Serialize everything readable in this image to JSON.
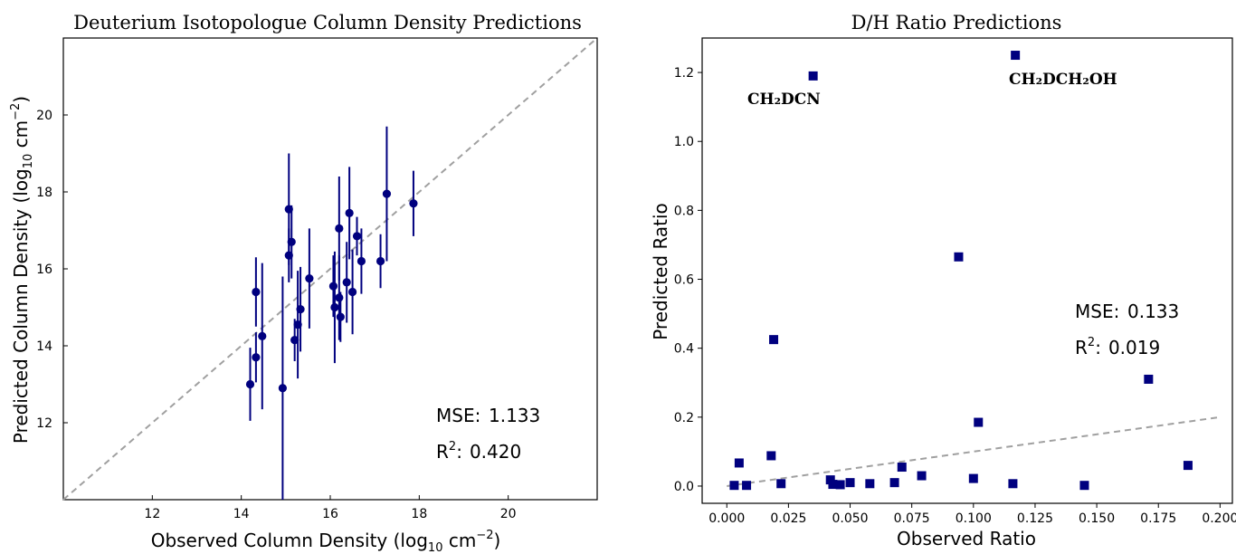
{
  "chart_data": [
    {
      "type": "scatter",
      "title": "Deuterium Isotopologue Column Density Predictions",
      "xlabel": "Observed Column Density (log10 cm^-2)",
      "ylabel": "Predicted Column Density (log10 cm^-2)",
      "xlabel_parts": [
        "Observed Column Density (log",
        "10",
        " cm",
        "−2",
        ")"
      ],
      "ylabel_parts": [
        "Predicted Column Density (log",
        "10",
        " cm",
        "−2",
        ")"
      ],
      "xlim": [
        10.0,
        22.0
      ],
      "ylim": [
        10.0,
        22.0
      ],
      "xticks": [
        12,
        14,
        16,
        18,
        20
      ],
      "yticks": [
        12,
        14,
        16,
        18,
        20
      ],
      "reference_line": "y = x (gray dashed)",
      "marker_color": "#00007f",
      "stats": {
        "mse_label": "MSE:",
        "mse": "1.133",
        "r2_label": "R",
        "r2_sup": "2",
        "r2_colon": ":",
        "r2": "0.420"
      },
      "points": [
        {
          "x": 14.2,
          "y": 13.0,
          "yerr": 0.95
        },
        {
          "x": 14.33,
          "y": 13.7,
          "yerr": 0.65
        },
        {
          "x": 14.33,
          "y": 15.4,
          "yerr": 0.9
        },
        {
          "x": 14.47,
          "y": 14.25,
          "yerr": 1.9
        },
        {
          "x": 14.93,
          "y": 12.9,
          "yerr": 2.9
        },
        {
          "x": 15.07,
          "y": 17.55,
          "yerr": 1.45
        },
        {
          "x": 15.07,
          "y": 16.35,
          "yerr": 0.7
        },
        {
          "x": 15.13,
          "y": 16.7,
          "yerr": 0.95
        },
        {
          "x": 15.2,
          "y": 14.15,
          "yerr": 0.55
        },
        {
          "x": 15.27,
          "y": 14.55,
          "yerr": 1.4
        },
        {
          "x": 15.33,
          "y": 14.95,
          "yerr": 1.1
        },
        {
          "x": 15.53,
          "y": 15.75,
          "yerr": 1.3
        },
        {
          "x": 16.07,
          "y": 15.55,
          "yerr": 0.8
        },
        {
          "x": 16.1,
          "y": 15.0,
          "yerr": 1.45
        },
        {
          "x": 16.2,
          "y": 15.25,
          "yerr": 1.1
        },
        {
          "x": 16.2,
          "y": 17.05,
          "yerr": 1.35
        },
        {
          "x": 16.23,
          "y": 14.75,
          "yerr": 0.65
        },
        {
          "x": 16.37,
          "y": 15.65,
          "yerr": 1.05
        },
        {
          "x": 16.43,
          "y": 17.45,
          "yerr": 1.2
        },
        {
          "x": 16.5,
          "y": 15.4,
          "yerr": 1.1
        },
        {
          "x": 16.6,
          "y": 16.85,
          "yerr": 0.5
        },
        {
          "x": 16.7,
          "y": 16.2,
          "yerr": 0.85
        },
        {
          "x": 17.13,
          "y": 16.2,
          "yerr": 0.7
        },
        {
          "x": 17.27,
          "y": 17.95,
          "yerr": 1.75
        },
        {
          "x": 17.87,
          "y": 17.7,
          "yerr": 0.85
        }
      ]
    },
    {
      "type": "scatter",
      "title": "D/H Ratio Predictions",
      "xlabel": "Observed Ratio",
      "ylabel": "Predicted Ratio",
      "xlim": [
        -0.01,
        0.205
      ],
      "ylim": [
        -0.05,
        1.3
      ],
      "xticks": [
        "0.000",
        "0.025",
        "0.050",
        "0.075",
        "0.100",
        "0.125",
        "0.150",
        "0.175",
        "0.200"
      ],
      "yticks": [
        "0.0",
        "0.2",
        "0.4",
        "0.6",
        "0.8",
        "1.0",
        "1.2"
      ],
      "reference_line": "y = x (gray dashed)",
      "marker_color": "#00007f",
      "stats": {
        "mse_label": "MSE:",
        "mse": "0.133",
        "r2_label": "R",
        "r2_sup": "2",
        "r2_colon": ":",
        "r2": "0.019"
      },
      "annotations": [
        {
          "text": "CH₂DCN",
          "x": 0.035,
          "y": 1.19
        },
        {
          "text": "CH₂DCH₂OH",
          "x": 0.117,
          "y": 1.25
        }
      ],
      "points": [
        {
          "x": 0.035,
          "y": 1.19
        },
        {
          "x": 0.117,
          "y": 1.25
        },
        {
          "x": 0.094,
          "y": 0.665
        },
        {
          "x": 0.019,
          "y": 0.425
        },
        {
          "x": 0.171,
          "y": 0.31
        },
        {
          "x": 0.102,
          "y": 0.185
        },
        {
          "x": 0.018,
          "y": 0.088
        },
        {
          "x": 0.005,
          "y": 0.067
        },
        {
          "x": 0.187,
          "y": 0.06
        },
        {
          "x": 0.071,
          "y": 0.055
        },
        {
          "x": 0.079,
          "y": 0.03
        },
        {
          "x": 0.1,
          "y": 0.022
        },
        {
          "x": 0.042,
          "y": 0.018
        },
        {
          "x": 0.05,
          "y": 0.01
        },
        {
          "x": 0.068,
          "y": 0.01
        },
        {
          "x": 0.022,
          "y": 0.007
        },
        {
          "x": 0.058,
          "y": 0.007
        },
        {
          "x": 0.116,
          "y": 0.007
        },
        {
          "x": 0.043,
          "y": 0.005
        },
        {
          "x": 0.046,
          "y": 0.004
        },
        {
          "x": 0.003,
          "y": 0.002
        },
        {
          "x": 0.008,
          "y": 0.002
        },
        {
          "x": 0.145,
          "y": 0.002
        }
      ]
    }
  ]
}
